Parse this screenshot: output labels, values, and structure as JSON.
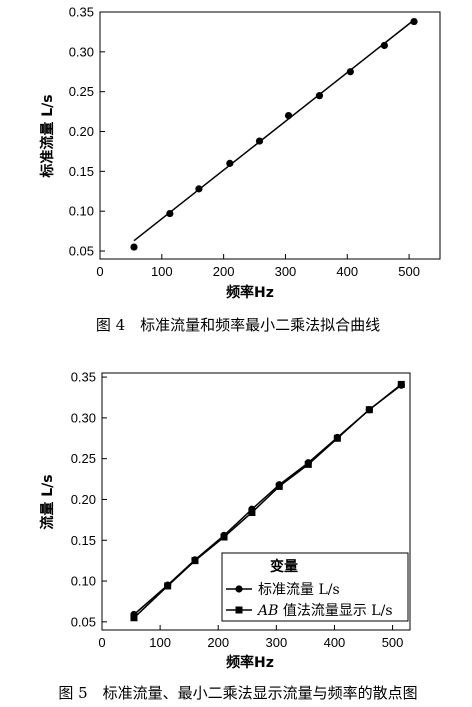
{
  "chart_data": [
    {
      "type": "line",
      "title": "",
      "xlabel": "频率Hz",
      "ylabel": "标准流量 L/s",
      "caption": "图 4　标准流量和频率最小二乘法拟合曲线",
      "xlim": [
        0,
        550
      ],
      "ylim": [
        0.04,
        0.35
      ],
      "xticks": [
        0,
        100,
        200,
        300,
        400,
        500
      ],
      "yticks": [
        0.05,
        0.1,
        0.15,
        0.2,
        0.25,
        0.3,
        0.35
      ],
      "grid": false,
      "series": [
        {
          "style": "markers",
          "marker": "circle",
          "x": [
            55,
            113,
            160,
            210,
            258,
            305,
            355,
            405,
            460,
            508
          ],
          "y": [
            0.055,
            0.097,
            0.128,
            0.16,
            0.188,
            0.22,
            0.245,
            0.275,
            0.308,
            0.338
          ]
        },
        {
          "style": "line",
          "x": [
            55,
            508
          ],
          "y": [
            0.063,
            0.34
          ]
        }
      ]
    },
    {
      "type": "line",
      "title": "",
      "xlabel": "频率Hz",
      "ylabel": "流量 L/s",
      "caption": "图 5　标准流量、最小二乘法显示流量与频率的散点图",
      "xlim": [
        0,
        530
      ],
      "ylim": [
        0.04,
        0.355
      ],
      "xticks": [
        0,
        100,
        200,
        300,
        400,
        500
      ],
      "yticks": [
        0.05,
        0.1,
        0.15,
        0.2,
        0.25,
        0.3,
        0.35
      ],
      "grid": false,
      "legend": {
        "placement": "bottom-right",
        "title": "变量",
        "entries": [
          {
            "label_prefix": "",
            "label_main": "标准流量 L/s",
            "marker": "circle"
          },
          {
            "label_prefix": "AB",
            "label_main": " 值法流量显示 L/s",
            "marker": "square"
          }
        ]
      },
      "series": [
        {
          "name": "标准流量 L/s",
          "marker": "circle",
          "x": [
            55,
            113,
            160,
            210,
            258,
            305,
            355,
            405,
            460,
            515
          ],
          "y": [
            0.059,
            0.095,
            0.126,
            0.156,
            0.188,
            0.218,
            0.245,
            0.276,
            0.31,
            0.34
          ]
        },
        {
          "name": "AB 值法流量显示 L/s",
          "marker": "square",
          "x": [
            55,
            113,
            160,
            210,
            258,
            305,
            355,
            405,
            460,
            515
          ],
          "y": [
            0.055,
            0.094,
            0.125,
            0.154,
            0.184,
            0.216,
            0.243,
            0.275,
            0.31,
            0.341
          ]
        }
      ]
    }
  ]
}
